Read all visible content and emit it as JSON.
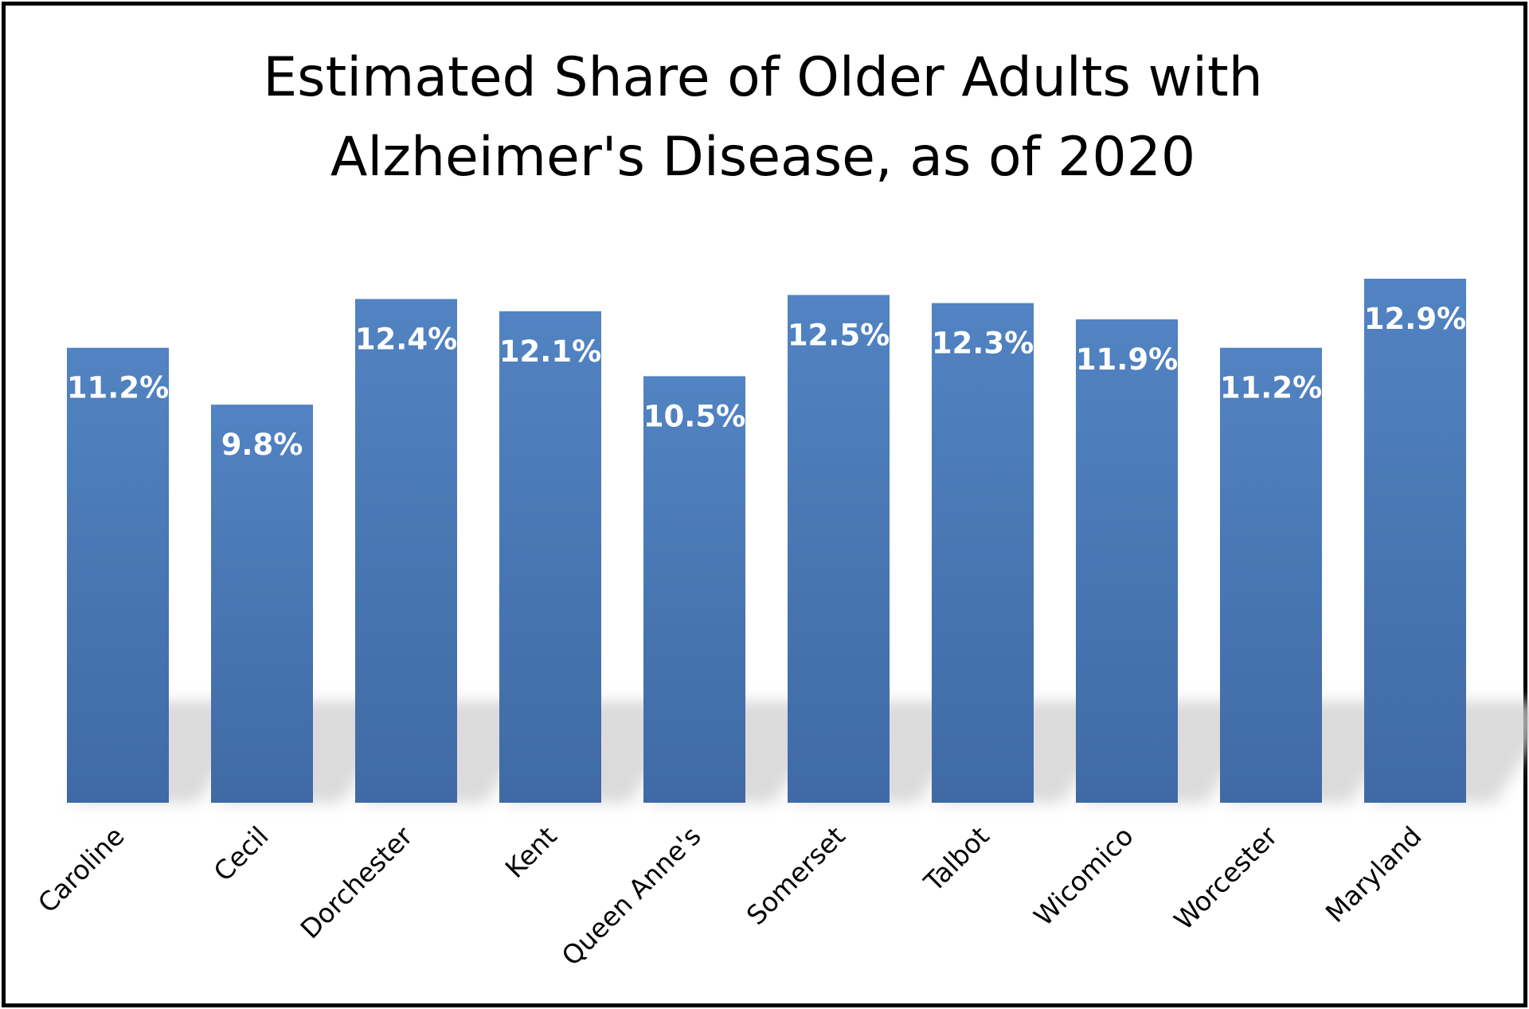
{
  "chart_data": {
    "type": "bar",
    "title": "Estimated Share of Older Adults with Alzheimer's Disease, as of 2020",
    "title_lines": [
      "Estimated Share of Older Adults with",
      "Alzheimer's Disease, as of 2020"
    ],
    "categories": [
      "Caroline",
      "Cecil",
      "Dorchester",
      "Kent",
      "Queen Anne's",
      "Somerset",
      "Talbot",
      "Wicomico",
      "Worcester",
      "Maryland"
    ],
    "values": [
      11.2,
      9.8,
      12.4,
      12.1,
      10.5,
      12.5,
      12.3,
      11.9,
      11.2,
      12.9
    ],
    "data_labels": [
      "11.2%",
      "9.8%",
      "12.4%",
      "12.1%",
      "10.5%",
      "12.5%",
      "12.3%",
      "11.9%",
      "11.2%",
      "12.9%"
    ],
    "xlabel": "",
    "ylabel": "",
    "ylim": [
      0,
      12.9
    ],
    "grid": false,
    "legend": "none",
    "bar_color": "#4a7ab8",
    "label_color": "#ffffff"
  }
}
